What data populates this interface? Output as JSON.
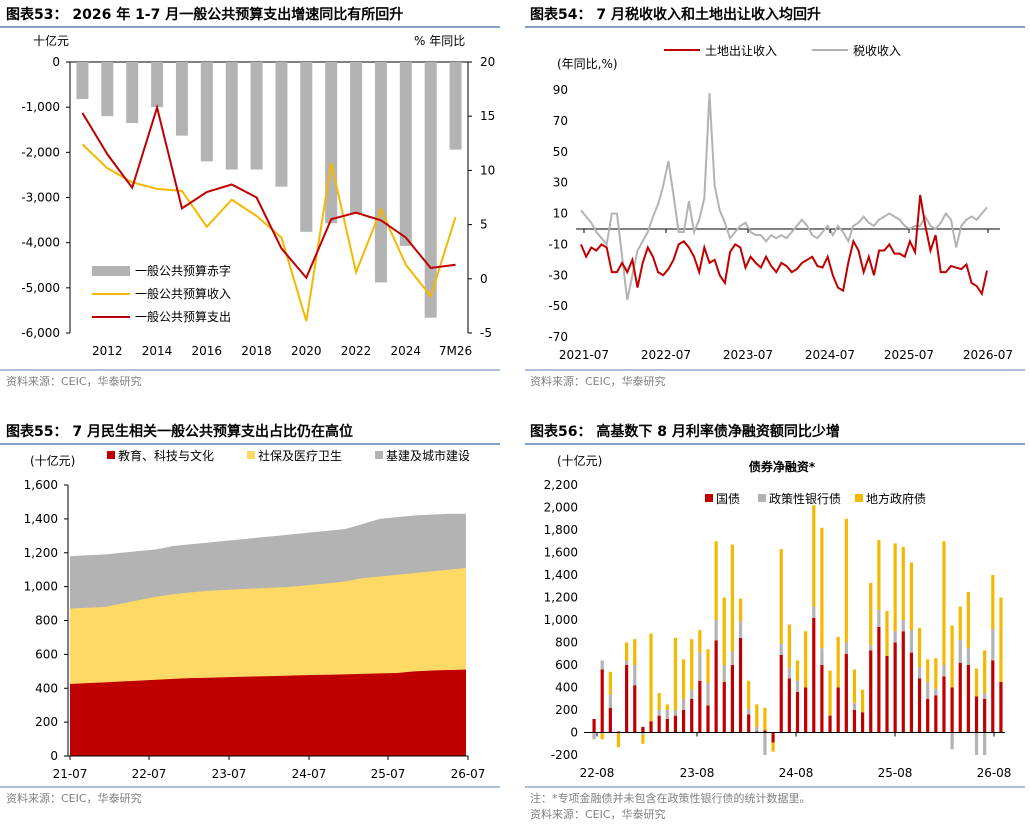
{
  "panels": [
    {
      "title": "图表53： 2026 年 1-7 月一般公共预算支出增速同比有所回升",
      "source": "资料来源：CEIC，华泰研究"
    },
    {
      "title": "图表54： 7 月税收收入和土地出让收入均回升",
      "source": "资料来源：CEIC，华泰研究"
    },
    {
      "title": "图表55： 7 月民生相关一般公共预算支出占比仍在高位",
      "source": "资料来源：CEIC，华泰研究"
    },
    {
      "title": "图表56： 高基数下 8 月利率债净融资额同比少增",
      "note": "注：*专项金融债并未包含在政策性银行债的统计数据里。",
      "source": "资料来源：CEIC，华泰研究"
    }
  ],
  "chart_data": [
    {
      "type": "bar+line",
      "title": "2026 年 1-7 月一般公共预算支出增速同比有所回升",
      "ylabel_left": "十亿元",
      "ylabel_right": "% 年同比",
      "ylim_left": [
        -6000,
        0
      ],
      "yticks_left": [
        0,
        -1000,
        -2000,
        -3000,
        -4000,
        -5000,
        -6000
      ],
      "ylim_right": [
        -5,
        20
      ],
      "yticks_right": [
        20,
        15,
        10,
        5,
        0,
        -5
      ],
      "xtick_labels": [
        "2012",
        "2014",
        "2016",
        "2018",
        "2020",
        "2022",
        "2024",
        "7M26"
      ],
      "categories": [
        "2011",
        "2012",
        "2013",
        "2014",
        "2015",
        "2016",
        "2017",
        "2018",
        "2019",
        "2020",
        "2021",
        "2022",
        "2023",
        "2024",
        "2025",
        "7M26"
      ],
      "bars": {
        "name": "一般公共预算赤字",
        "axis": "left",
        "color": "#b3b3b3",
        "values": [
          -820,
          -1200,
          -1350,
          -1000,
          -1630,
          -2200,
          -2380,
          -2380,
          -2760,
          -3760,
          -3570,
          -3370,
          -4880,
          -4070,
          -5660,
          -1940
        ]
      },
      "series": [
        {
          "name": "一般公共预算收入",
          "axis": "right",
          "color": "#f5b800",
          "values": [
            12.4,
            10.2,
            8.9,
            8.3,
            8.1,
            4.8,
            7.3,
            5.8,
            3.8,
            -3.9,
            10.7,
            0.6,
            6.4,
            1.3,
            -1.6,
            5.7
          ]
        },
        {
          "name": "一般公共预算支出",
          "axis": "right",
          "color": "#c00000",
          "values": [
            15.3,
            11.5,
            8.4,
            15.8,
            6.5,
            8.0,
            8.7,
            7.5,
            2.8,
            0.1,
            5.5,
            6.1,
            5.4,
            3.8,
            1.0,
            1.3
          ]
        }
      ]
    },
    {
      "type": "line",
      "title": "7 月税收收入和土地出让收入均回升",
      "ylabel": "(年同比,%)",
      "ylim": [
        -70,
        90
      ],
      "yticks": [
        90,
        70,
        50,
        30,
        10,
        -10,
        -30,
        -50,
        -70
      ],
      "xtick_labels": [
        "2021-07",
        "2022-07",
        "2023-07",
        "2024-07",
        "2025-07",
        "2026-07"
      ],
      "x_start": "2021-07",
      "x_end": "2026-07",
      "series": [
        {
          "name": "土地出让收入",
          "color": "#c00000",
          "values": [
            -10,
            -18,
            -12,
            -14,
            -10,
            -12,
            -28,
            -28,
            -22,
            -28,
            -20,
            -38,
            -22,
            -12,
            -18,
            -28,
            -30,
            -26,
            -20,
            -10,
            -8,
            -12,
            -18,
            -28,
            -12,
            -22,
            -20,
            -30,
            -35,
            -15,
            -10,
            -12,
            -25,
            -18,
            -22,
            -25,
            -18,
            -24,
            -28,
            -22,
            -24,
            -28,
            -26,
            -22,
            -20,
            -18,
            -24,
            -25,
            -18,
            -30,
            -38,
            -40,
            -22,
            -8,
            -14,
            -28,
            -18,
            -30,
            -14,
            -14,
            -10,
            -16,
            -16,
            -18,
            -8,
            -15,
            22,
            2,
            -14,
            -4,
            -28,
            -28,
            -24,
            -25,
            -26,
            -23,
            -35,
            -37,
            -42,
            -27
          ]
        },
        {
          "name": "税收收入",
          "color": "#b3b3b3",
          "values": [
            12,
            8,
            4,
            -2,
            -6,
            -10,
            10,
            10,
            -18,
            -46,
            -30,
            -14,
            -8,
            -2,
            8,
            16,
            28,
            44,
            22,
            -2,
            -2,
            18,
            -2,
            6,
            20,
            88,
            28,
            12,
            4,
            -6,
            -2,
            2,
            4,
            -2,
            -4,
            -4,
            -8,
            -4,
            -6,
            -4,
            -6,
            -2,
            2,
            6,
            2,
            -4,
            -6,
            -2,
            2,
            -4,
            2,
            -2,
            -8,
            2,
            4,
            8,
            4,
            2,
            6,
            8,
            10,
            8,
            6,
            2,
            0,
            2,
            2,
            8,
            2,
            0,
            4,
            10,
            6,
            -12,
            2,
            6,
            8,
            6,
            10,
            14
          ]
        }
      ]
    },
    {
      "type": "area",
      "title": "7 月民生相关一般公共预算支出占比仍在高位",
      "ylabel": "(十亿元)",
      "ylim": [
        0,
        1600
      ],
      "yticks": [
        0,
        200,
        400,
        600,
        800,
        1000,
        1200,
        1400,
        1600
      ],
      "xtick_labels": [
        "21-07",
        "22-07",
        "23-07",
        "24-07",
        "25-07",
        "26-07"
      ],
      "x_start": "21-07",
      "x_end": "26-07",
      "series": [
        {
          "name": "教育、科技与文化",
          "color": "#c00000",
          "values": [
            425,
            430,
            435,
            440,
            445,
            450,
            455,
            460,
            462,
            465,
            468,
            470,
            472,
            475,
            478,
            480,
            482,
            485,
            488,
            490,
            500,
            505,
            508,
            510
          ]
        },
        {
          "name": "社保及医疗卫生",
          "color": "#ffd966",
          "values": [
            870,
            875,
            880,
            900,
            920,
            940,
            955,
            965,
            975,
            980,
            985,
            990,
            995,
            1000,
            1010,
            1020,
            1030,
            1050,
            1060,
            1070,
            1080,
            1090,
            1100,
            1110
          ]
        },
        {
          "name": "基建及城市建设",
          "color": "#b3b3b3",
          "values": [
            1180,
            1185,
            1190,
            1200,
            1210,
            1220,
            1240,
            1250,
            1260,
            1270,
            1280,
            1290,
            1300,
            1310,
            1320,
            1330,
            1340,
            1370,
            1400,
            1410,
            1420,
            1425,
            1430,
            1430
          ]
        }
      ]
    },
    {
      "type": "stacked-bar",
      "title": "债券净融资*",
      "ylabel": "(十亿元)",
      "ylim": [
        -200,
        2200
      ],
      "yticks": [
        2200,
        2000,
        1800,
        1600,
        1400,
        1200,
        1000,
        800,
        600,
        400,
        200,
        0,
        -200
      ],
      "xtick_labels": [
        "22-08",
        "23-08",
        "24-08",
        "25-08",
        "26-08"
      ],
      "x_start": "22-08",
      "x_end": "26-08",
      "series": [
        {
          "name": "国债",
          "color": "#c00000",
          "values": [
            120,
            560,
            220,
            10,
            600,
            420,
            50,
            100,
            150,
            120,
            150,
            200,
            300,
            460,
            240,
            820,
            450,
            600,
            840,
            160,
            10,
            20,
            -90,
            690,
            480,
            360,
            400,
            1020,
            600,
            150,
            400,
            700,
            200,
            180,
            730,
            940,
            680,
            800,
            900,
            710,
            480,
            300,
            330,
            500,
            400,
            620,
            600,
            320,
            300,
            640,
            450
          ]
        },
        {
          "name": "政策性银行债",
          "color": "#b3b3b3",
          "values": [
            0,
            80,
            120,
            0,
            40,
            180,
            -20,
            0,
            50,
            80,
            50,
            100,
            80,
            250,
            200,
            180,
            150,
            120,
            150,
            50,
            40,
            0,
            0,
            100,
            100,
            100,
            0,
            100,
            150,
            0,
            0,
            100,
            60,
            0,
            50,
            150,
            0,
            100,
            100,
            200,
            100,
            150,
            60,
            100,
            0,
            200,
            150,
            0,
            50,
            280,
            0
          ]
        },
        {
          "name": "地方政府债",
          "color": "#f5b800",
          "values": [
            0,
            -60,
            200,
            -130,
            160,
            230,
            -80,
            780,
            150,
            50,
            640,
            350,
            450,
            200,
            300,
            700,
            600,
            950,
            200,
            250,
            200,
            200,
            -80,
            840,
            380,
            180,
            500,
            900,
            1070,
            400,
            450,
            1100,
            300,
            200,
            550,
            620,
            400,
            780,
            650,
            600,
            350,
            200,
            270,
            1100,
            550,
            300,
            500,
            250,
            380,
            480,
            750
          ]
        },
        {
          "name": "政策性银行债(负)",
          "color": "#b3b3b3",
          "note": "negative part shown below zero",
          "values": [
            -60,
            0,
            0,
            0,
            0,
            0,
            0,
            0,
            0,
            0,
            0,
            0,
            0,
            0,
            0,
            0,
            0,
            0,
            0,
            0,
            0,
            -200,
            0,
            0,
            0,
            0,
            0,
            0,
            0,
            0,
            0,
            0,
            0,
            0,
            0,
            0,
            0,
            0,
            0,
            0,
            0,
            0,
            0,
            0,
            -150,
            0,
            0,
            -200,
            -200,
            0,
            0
          ]
        }
      ]
    }
  ]
}
